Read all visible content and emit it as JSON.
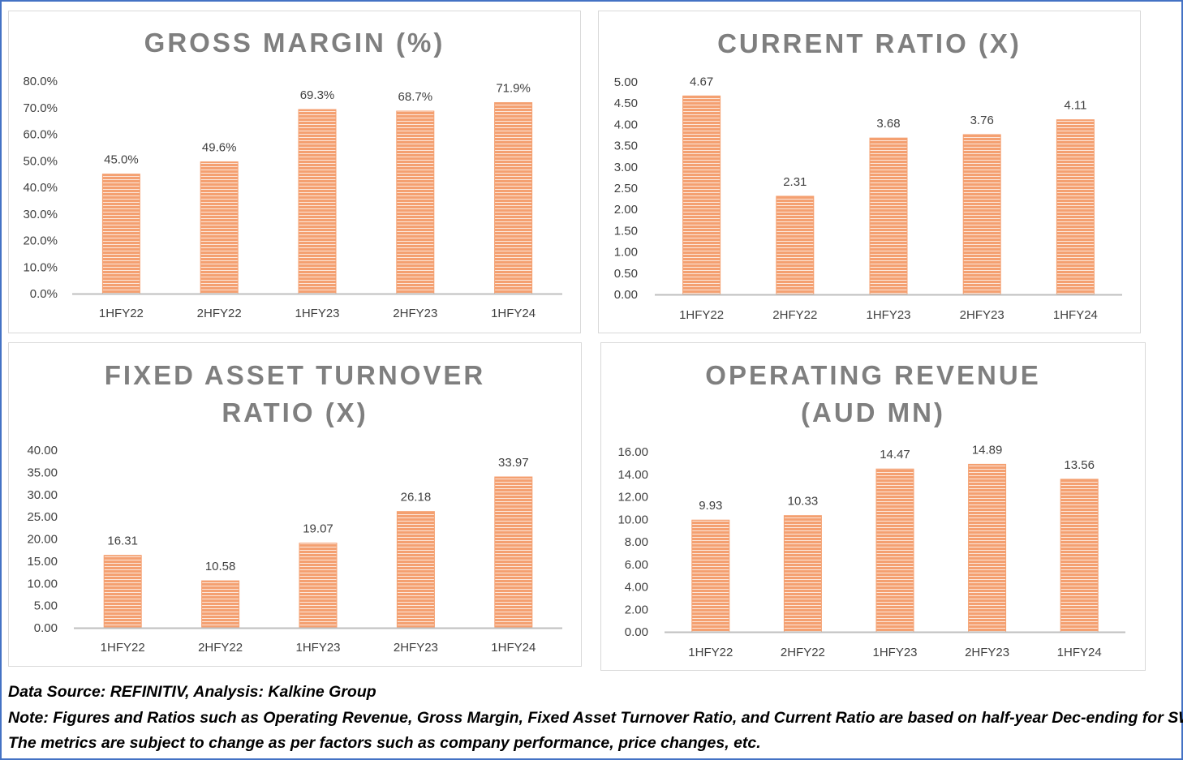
{
  "colors": {
    "bar": "#f4a071",
    "bar_stripe": "#ffffff",
    "frame": "#4472c4",
    "axis": "#bfbfbf",
    "title": "#7f7f7f"
  },
  "chart_data": [
    {
      "type": "bar",
      "title_lines": [
        "GROSS MARGIN (%)"
      ],
      "categories": [
        "1HFY22",
        "2HFY22",
        "1HFY23",
        "2HFY23",
        "1HFY24"
      ],
      "values": [
        45.0,
        49.6,
        69.3,
        68.7,
        71.9
      ],
      "value_labels": [
        "45.0%",
        "49.6%",
        "69.3%",
        "68.7%",
        "71.9%"
      ],
      "ylim": [
        0,
        80
      ],
      "y_ticks": [
        "0.0%",
        "10.0%",
        "20.0%",
        "30.0%",
        "40.0%",
        "50.0%",
        "60.0%",
        "70.0%",
        "80.0%"
      ],
      "grid": false,
      "legend": "none"
    },
    {
      "type": "bar",
      "title_lines": [
        "CURRENT RATIO (X)"
      ],
      "categories": [
        "1HFY22",
        "2HFY22",
        "1HFY23",
        "2HFY23",
        "1HFY24"
      ],
      "values": [
        4.67,
        2.31,
        3.68,
        3.76,
        4.11
      ],
      "value_labels": [
        "4.67",
        "2.31",
        "3.68",
        "3.76",
        "4.11"
      ],
      "ylim": [
        0,
        5
      ],
      "y_ticks": [
        "0.00",
        "0.50",
        "1.00",
        "1.50",
        "2.00",
        "2.50",
        "3.00",
        "3.50",
        "4.00",
        "4.50",
        "5.00"
      ],
      "grid": false,
      "legend": "none"
    },
    {
      "type": "bar",
      "title_lines": [
        "FIXED ASSET TURNOVER",
        "RATIO (X)"
      ],
      "categories": [
        "1HFY22",
        "2HFY22",
        "1HFY23",
        "2HFY23",
        "1HFY24"
      ],
      "values": [
        16.31,
        10.58,
        19.07,
        26.18,
        33.97
      ],
      "value_labels": [
        "16.31",
        "10.58",
        "19.07",
        "26.18",
        "33.97"
      ],
      "ylim": [
        0,
        40
      ],
      "y_ticks": [
        "0.00",
        "5.00",
        "10.00",
        "15.00",
        "20.00",
        "25.00",
        "30.00",
        "35.00",
        "40.00"
      ],
      "grid": false,
      "legend": "none"
    },
    {
      "type": "bar",
      "title_lines": [
        "OPERATING REVENUE",
        "(AUD MN)"
      ],
      "categories": [
        "1HFY22",
        "2HFY22",
        "1HFY23",
        "2HFY23",
        "1HFY24"
      ],
      "values": [
        9.93,
        10.33,
        14.47,
        14.89,
        13.56
      ],
      "value_labels": [
        "9.93",
        "10.33",
        "14.47",
        "14.89",
        "13.56"
      ],
      "ylim": [
        0,
        16
      ],
      "y_ticks": [
        "0.00",
        "2.00",
        "4.00",
        "6.00",
        "8.00",
        "10.00",
        "12.00",
        "14.00",
        "16.00"
      ],
      "grid": false,
      "legend": "none"
    }
  ],
  "notes": [
    "Data Source: REFINITIV, Analysis: Kalkine Group",
    "Note: Figures and Ratios such as Operating Revenue, Gross Margin, Fixed Asset Turnover Ratio, and Current Ratio are based on half-year Dec-ending for SWF",
    "The metrics are subject to change as per factors such as company performance, price changes, etc."
  ]
}
